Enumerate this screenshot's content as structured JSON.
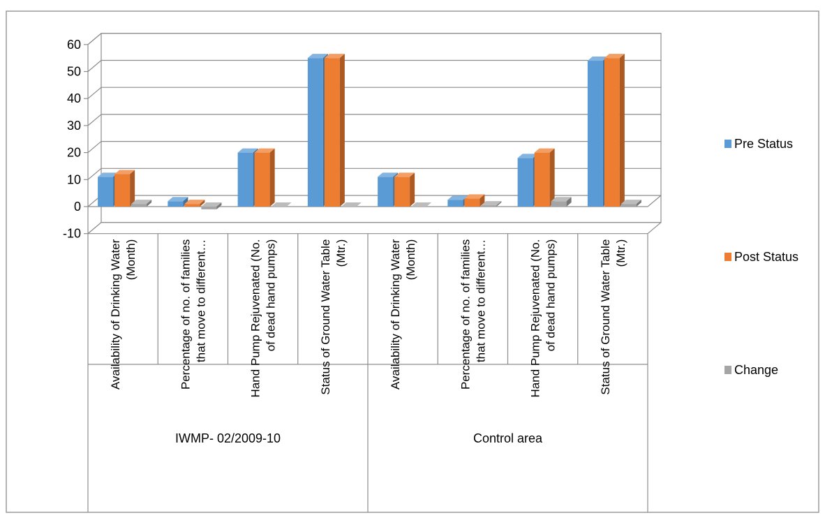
{
  "chart_data": {
    "type": "bar",
    "title": "",
    "xlabel": "",
    "ylabel": "",
    "ylim": [
      -10,
      60
    ],
    "yticks": [
      -10,
      0,
      10,
      20,
      30,
      40,
      50,
      60
    ],
    "grid": true,
    "legend_position": "right",
    "groups": [
      {
        "label": "IWMP- 02/2009-10",
        "categories": [
          0,
          1,
          2,
          3
        ]
      },
      {
        "label": "Control area",
        "categories": [
          4,
          5,
          6,
          7
        ]
      }
    ],
    "categories": [
      [
        "Availability of  Drinking Water",
        "(Month)"
      ],
      [
        "Percentage of no. of families",
        "that move to different…"
      ],
      [
        "Hand Pump Rejuvenated (No.",
        "of dead hand pumps)"
      ],
      [
        "Status of Ground Water Table",
        "(Mtr.)"
      ],
      [
        "Availability of  Drinking Water",
        "(Month)"
      ],
      [
        "Percentage of no. of families",
        "that move to different…"
      ],
      [
        "Hand Pump Rejuvenated (No.",
        "of dead hand pumps)"
      ],
      [
        "Status of Ground Water Table",
        "(Mtr.)"
      ]
    ],
    "series": [
      {
        "name": "Pre Status",
        "color": "#5b9bd5",
        "values": [
          11,
          2,
          20,
          55,
          11,
          2.5,
          18,
          54
        ]
      },
      {
        "name": "Post Status",
        "color": "#ed7d31",
        "values": [
          12,
          1,
          20,
          55,
          11,
          3,
          20,
          55
        ]
      },
      {
        "name": "Change",
        "color": "#a5a5a5",
        "values": [
          1,
          -1,
          0,
          0,
          0,
          0.5,
          2,
          1
        ]
      }
    ]
  }
}
